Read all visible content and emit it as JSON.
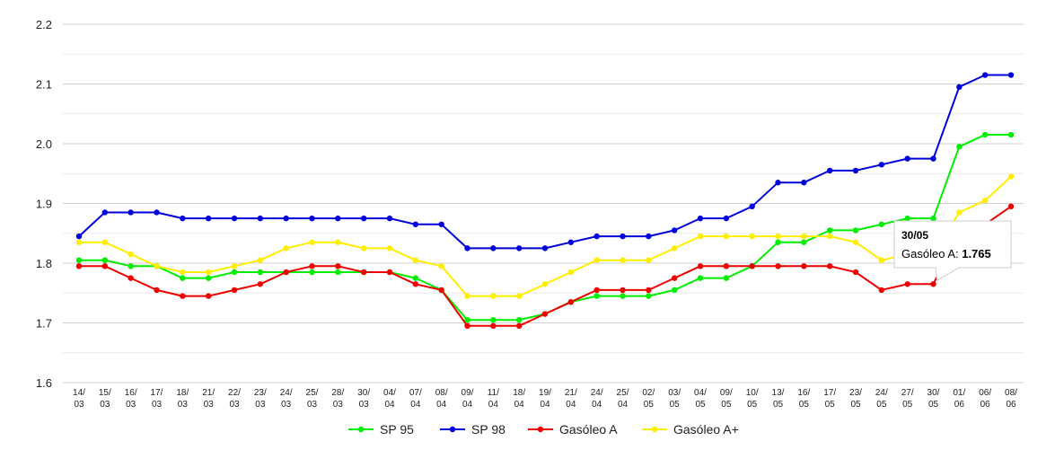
{
  "chart_data": {
    "type": "line",
    "ylim": [
      1.6,
      2.2
    ],
    "yticks": [
      "1.6",
      "1.7",
      "1.8",
      "1.9",
      "2.0",
      "2.1",
      "2.2"
    ],
    "grid": true,
    "legend_position": "bottom",
    "categories": [
      [
        "14/",
        "03"
      ],
      [
        "15/",
        "03"
      ],
      [
        "16/",
        "03"
      ],
      [
        "17/",
        "03"
      ],
      [
        "18/",
        "03"
      ],
      [
        "21/",
        "03"
      ],
      [
        "22/",
        "03"
      ],
      [
        "23/",
        "03"
      ],
      [
        "24/",
        "03"
      ],
      [
        "25/",
        "03"
      ],
      [
        "28/",
        "03"
      ],
      [
        "30/",
        "03"
      ],
      [
        "04/",
        "04"
      ],
      [
        "07/",
        "04"
      ],
      [
        "08/",
        "04"
      ],
      [
        "09/",
        "04"
      ],
      [
        "11/",
        "04"
      ],
      [
        "18/",
        "04"
      ],
      [
        "19/",
        "04"
      ],
      [
        "21/",
        "04"
      ],
      [
        "24/",
        "04"
      ],
      [
        "25/",
        "04"
      ],
      [
        "02/",
        "05"
      ],
      [
        "03/",
        "05"
      ],
      [
        "04/",
        "05"
      ],
      [
        "09/",
        "05"
      ],
      [
        "10/",
        "05"
      ],
      [
        "13/",
        "05"
      ],
      [
        "16/",
        "05"
      ],
      [
        "17/",
        "05"
      ],
      [
        "23/",
        "05"
      ],
      [
        "24/",
        "05"
      ],
      [
        "27/",
        "05"
      ],
      [
        "30/",
        "05"
      ],
      [
        "01/",
        "06"
      ],
      [
        "06/",
        "06"
      ],
      [
        "08/",
        "06"
      ]
    ],
    "series": [
      {
        "name": "SP 95",
        "color": "#00ee00",
        "values": [
          1.805,
          1.805,
          1.795,
          1.795,
          1.775,
          1.775,
          1.785,
          1.785,
          1.785,
          1.785,
          1.785,
          1.785,
          1.785,
          1.775,
          1.755,
          1.705,
          1.705,
          1.705,
          1.715,
          1.735,
          1.745,
          1.745,
          1.745,
          1.755,
          1.775,
          1.775,
          1.795,
          1.835,
          1.835,
          1.855,
          1.855,
          1.865,
          1.875,
          1.875,
          1.995,
          2.015,
          2.015
        ]
      },
      {
        "name": "SP 98",
        "color": "#0000dd",
        "values": [
          1.845,
          1.885,
          1.885,
          1.885,
          1.875,
          1.875,
          1.875,
          1.875,
          1.875,
          1.875,
          1.875,
          1.875,
          1.875,
          1.865,
          1.865,
          1.825,
          1.825,
          1.825,
          1.825,
          1.835,
          1.845,
          1.845,
          1.845,
          1.855,
          1.875,
          1.875,
          1.895,
          1.935,
          1.935,
          1.955,
          1.955,
          1.965,
          1.975,
          1.975,
          2.095,
          2.115,
          2.115
        ]
      },
      {
        "name": "Gasóleo A",
        "color": "#ee0000",
        "values": [
          1.795,
          1.795,
          1.775,
          1.755,
          1.745,
          1.745,
          1.755,
          1.765,
          1.785,
          1.795,
          1.795,
          1.785,
          1.785,
          1.765,
          1.755,
          1.695,
          1.695,
          1.695,
          1.715,
          1.735,
          1.755,
          1.755,
          1.755,
          1.775,
          1.795,
          1.795,
          1.795,
          1.795,
          1.795,
          1.795,
          1.785,
          1.755,
          1.765,
          1.765,
          1.855,
          1.865,
          1.895
        ]
      },
      {
        "name": "Gasóleo A+",
        "color": "#ffee00",
        "values": [
          1.835,
          1.835,
          1.815,
          1.795,
          1.785,
          1.785,
          1.795,
          1.805,
          1.825,
          1.835,
          1.835,
          1.825,
          1.825,
          1.805,
          1.795,
          1.745,
          1.745,
          1.745,
          1.765,
          1.785,
          1.805,
          1.805,
          1.805,
          1.825,
          1.845,
          1.845,
          1.845,
          1.845,
          1.845,
          1.845,
          1.835,
          1.805,
          1.815,
          1.815,
          1.885,
          1.905,
          1.945
        ]
      }
    ],
    "tooltip": {
      "date": "30/05",
      "series_label": "Gasóleo A: ",
      "value": "1.765",
      "series_index": 2,
      "point_index": 33
    }
  }
}
